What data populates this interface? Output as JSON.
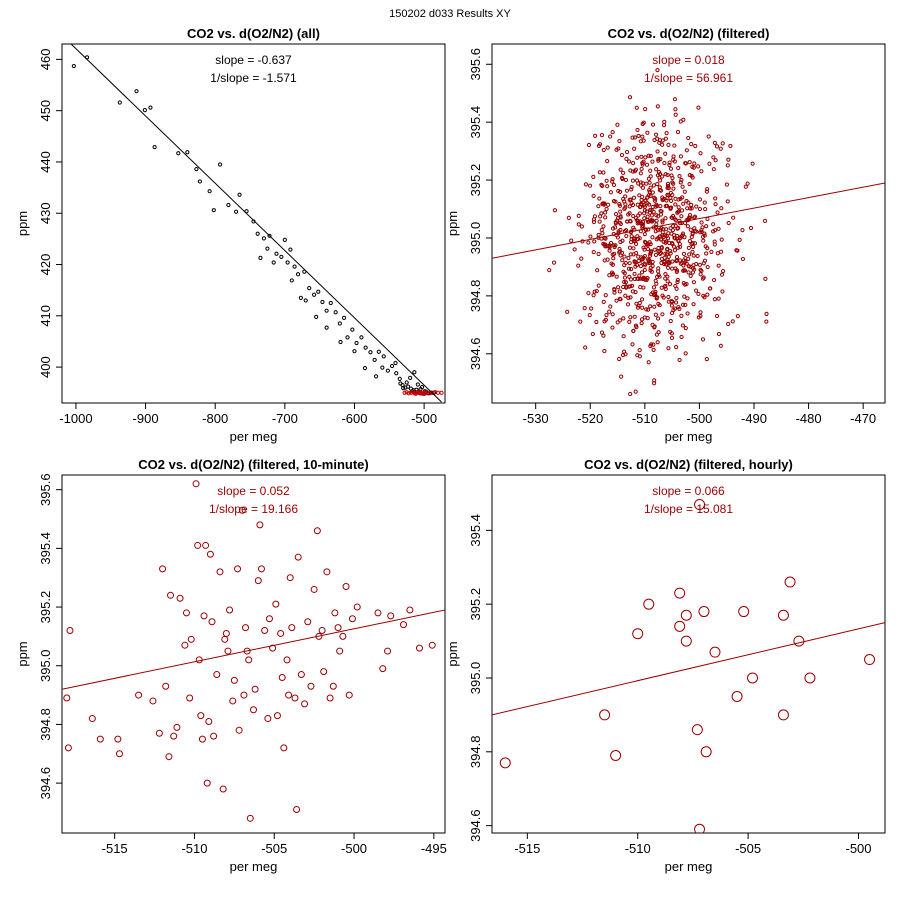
{
  "figure": {
    "title": "150202   d033   Results XY"
  },
  "chart_data": [
    {
      "type": "scatter",
      "id": "all",
      "title": "CO2 vs. d(O2/N2) (all)",
      "xlabel": "per meg",
      "ylabel": "ppm",
      "xlim": [
        -1020,
        -470
      ],
      "ylim": [
        393,
        463
      ],
      "xticks": [
        -1000,
        -900,
        -800,
        -700,
        -600,
        -500
      ],
      "yticks": [
        400,
        410,
        420,
        430,
        440,
        450,
        460
      ],
      "annotations": [
        "slope = -0.637",
        "1/slope = -1.571"
      ],
      "color": "#000000",
      "highlight_color": "#cc0000",
      "fit_line": {
        "x": [
          -1010,
          -475
        ],
        "y": [
          463.4,
          393.2
        ]
      },
      "points_main": [
        [
          -1003,
          458.7
        ],
        [
          -984,
          460.4
        ],
        [
          -937,
          451.6
        ],
        [
          -913,
          453.8
        ],
        [
          -901,
          450.1
        ],
        [
          -893,
          450.6
        ],
        [
          -887,
          442.9
        ],
        [
          -853,
          441.7
        ],
        [
          -840,
          441.9
        ],
        [
          -827,
          438.6
        ],
        [
          -822,
          436.2
        ],
        [
          -808,
          434.3
        ],
        [
          -802,
          430.6
        ],
        [
          -793,
          439.5
        ],
        [
          -781,
          431.6
        ],
        [
          -770,
          430.3
        ],
        [
          -765,
          433.6
        ],
        [
          -755,
          430.4
        ],
        [
          -745,
          428.4
        ],
        [
          -739,
          426.0
        ],
        [
          -730,
          425.1
        ],
        [
          -722,
          425.6
        ],
        [
          -716,
          420.4
        ],
        [
          -712,
          422.1
        ],
        [
          -700,
          424.8
        ],
        [
          -696,
          420.4
        ],
        [
          -692,
          422.9
        ],
        [
          -686,
          419.6
        ],
        [
          -681,
          418.1
        ],
        [
          -677,
          413.5
        ],
        [
          -672,
          418.6
        ],
        [
          -665,
          415.4
        ],
        [
          -658,
          414.1
        ],
        [
          -652,
          414.7
        ],
        [
          -646,
          412.7
        ],
        [
          -640,
          411.0
        ],
        [
          -634,
          412.5
        ],
        [
          -627,
          410.7
        ],
        [
          -621,
          408.5
        ],
        [
          -615,
          409.6
        ],
        [
          -610,
          405.8
        ],
        [
          -603,
          407.3
        ],
        [
          -597,
          404.7
        ],
        [
          -590,
          405.8
        ],
        [
          -584,
          403.8
        ],
        [
          -577,
          402.9
        ],
        [
          -571,
          401.4
        ],
        [
          -565,
          403.0
        ],
        [
          -558,
          402.1
        ],
        [
          -552,
          399.3
        ],
        [
          -546,
          400.2
        ],
        [
          -540,
          398.8
        ],
        [
          -535,
          397.7
        ],
        [
          -531,
          396.5
        ],
        [
          -527,
          396.0
        ],
        [
          -523,
          396.2
        ],
        [
          -519,
          395.8
        ],
        [
          -515,
          395.5
        ],
        [
          -511,
          395.6
        ],
        [
          -508,
          395.2
        ],
        [
          -505,
          395.7
        ],
        [
          -500,
          394.8
        ],
        [
          -497,
          395.2
        ],
        [
          -494,
          394.9
        ],
        [
          -490,
          395.0
        ],
        [
          -486,
          395.0
        ],
        [
          -520,
          397.9
        ],
        [
          -514,
          399.0
        ],
        [
          -525,
          397.0
        ],
        [
          -509,
          396.6
        ],
        [
          -503,
          396.1
        ],
        [
          -517,
          395.3
        ],
        [
          -512,
          395.1
        ],
        [
          -506,
          394.9
        ],
        [
          -499,
          395.3
        ],
        [
          -530,
          395.9
        ],
        [
          -534,
          396.8
        ],
        [
          -541,
          400.8
        ],
        [
          -560,
          399.9
        ],
        [
          -569,
          398.2
        ],
        [
          -585,
          399.8
        ],
        [
          -600,
          403.1
        ],
        [
          -620,
          404.9
        ],
        [
          -640,
          407.7
        ],
        [
          -655,
          409.8
        ],
        [
          -670,
          413.0
        ],
        [
          -690,
          416.9
        ],
        [
          -705,
          421.5
        ],
        [
          -725,
          423.1
        ],
        [
          -735,
          421.3
        ]
      ],
      "points_highlight": [
        [
          -528,
          395.0
        ],
        [
          -522,
          394.9
        ],
        [
          -516,
          395.2
        ],
        [
          -512,
          394.8
        ],
        [
          -508,
          395.1
        ],
        [
          -504,
          394.9
        ],
        [
          -500,
          395.0
        ],
        [
          -496,
          395.1
        ],
        [
          -492,
          394.9
        ],
        [
          -488,
          395.0
        ],
        [
          -484,
          395.1
        ],
        [
          -480,
          395.0
        ],
        [
          -475,
          395.0
        ],
        [
          -519,
          395.0
        ],
        [
          -510,
          395.0
        ],
        [
          -506,
          395.2
        ],
        [
          -502,
          394.8
        ],
        [
          -498,
          394.9
        ],
        [
          -514,
          394.9
        ],
        [
          -525,
          395.1
        ]
      ]
    },
    {
      "type": "scatter",
      "id": "filtered",
      "title": "CO2 vs. d(O2/N2) (filtered)",
      "xlabel": "per meg",
      "ylabel": "ppm",
      "xlim": [
        -538,
        -466
      ],
      "ylim": [
        394.43,
        395.67
      ],
      "xticks": [
        -530,
        -520,
        -510,
        -500,
        -490,
        -480,
        -470
      ],
      "yticks": [
        394.6,
        394.8,
        395.0,
        395.2,
        395.4,
        395.6
      ],
      "annotations": [
        "slope = 0.018",
        "1/slope = 56.961"
      ],
      "color": "#990000",
      "fit_line": {
        "x": [
          -538,
          -466
        ],
        "y": [
          394.93,
          395.19
        ]
      },
      "cloud": {
        "count": 900,
        "x_center": -508,
        "x_spread": 6.5,
        "y_center": 395.0,
        "y_spread": 0.19,
        "seed": 7
      }
    },
    {
      "type": "scatter",
      "id": "ten_minute",
      "title": "CO2 vs. d(O2/N2) (filtered, 10-minute)",
      "xlabel": "per meg",
      "ylabel": "ppm",
      "xlim": [
        -518.3,
        -494.3
      ],
      "ylim": [
        394.43,
        395.65
      ],
      "xticks": [
        -515,
        -510,
        -505,
        -500,
        -495
      ],
      "yticks": [
        394.6,
        394.8,
        395.0,
        395.2,
        395.4,
        395.6
      ],
      "annotations": [
        "slope = 0.052",
        "1/slope = 19.166"
      ],
      "color": "#990000",
      "fit_line": {
        "x": [
          -518.3,
          -494.3
        ],
        "y": [
          394.92,
          395.19
        ]
      },
      "points": [
        [
          -518.0,
          394.89
        ],
        [
          -517.9,
          394.72
        ],
        [
          -517.8,
          395.12
        ],
        [
          -516.4,
          394.82
        ],
        [
          -515.9,
          394.75
        ],
        [
          -514.8,
          394.75
        ],
        [
          -514.7,
          394.7
        ],
        [
          -513.5,
          394.9
        ],
        [
          -512.6,
          394.88
        ],
        [
          -512.2,
          394.77
        ],
        [
          -512.0,
          395.33
        ],
        [
          -511.8,
          394.93
        ],
        [
          -511.6,
          394.69
        ],
        [
          -511.5,
          395.24
        ],
        [
          -511.3,
          394.76
        ],
        [
          -511.1,
          394.79
        ],
        [
          -510.9,
          395.23
        ],
        [
          -510.6,
          395.07
        ],
        [
          -510.5,
          395.18
        ],
        [
          -510.3,
          394.89
        ],
        [
          -510.2,
          395.09
        ],
        [
          -509.9,
          395.62
        ],
        [
          -509.8,
          395.41
        ],
        [
          -509.7,
          395.02
        ],
        [
          -509.6,
          394.83
        ],
        [
          -509.5,
          394.75
        ],
        [
          -509.4,
          395.17
        ],
        [
          -509.3,
          395.41
        ],
        [
          -509.2,
          394.6
        ],
        [
          -509.1,
          394.81
        ],
        [
          -509.0,
          395.38
        ],
        [
          -508.9,
          395.15
        ],
        [
          -508.8,
          394.76
        ],
        [
          -508.6,
          394.97
        ],
        [
          -508.4,
          395.32
        ],
        [
          -508.2,
          394.58
        ],
        [
          -508.1,
          395.09
        ],
        [
          -508.0,
          395.11
        ],
        [
          -507.9,
          395.05
        ],
        [
          -507.8,
          395.19
        ],
        [
          -507.6,
          394.88
        ],
        [
          -507.5,
          394.95
        ],
        [
          -507.3,
          395.33
        ],
        [
          -507.2,
          394.78
        ],
        [
          -507.0,
          395.53
        ],
        [
          -506.9,
          394.9
        ],
        [
          -506.8,
          395.13
        ],
        [
          -506.7,
          395.05
        ],
        [
          -506.6,
          395.02
        ],
        [
          -506.5,
          394.48
        ],
        [
          -506.3,
          394.85
        ],
        [
          -506.2,
          394.92
        ],
        [
          -506.0,
          395.29
        ],
        [
          -505.9,
          395.48
        ],
        [
          -505.8,
          395.33
        ],
        [
          -505.6,
          395.12
        ],
        [
          -505.4,
          394.82
        ],
        [
          -505.3,
          395.16
        ],
        [
          -505.1,
          395.06
        ],
        [
          -504.9,
          395.21
        ],
        [
          -504.8,
          394.83
        ],
        [
          -504.6,
          395.11
        ],
        [
          -504.5,
          394.96
        ],
        [
          -504.4,
          394.72
        ],
        [
          -504.2,
          395.02
        ],
        [
          -504.1,
          394.9
        ],
        [
          -504.0,
          395.3
        ],
        [
          -503.9,
          395.13
        ],
        [
          -503.7,
          394.89
        ],
        [
          -503.6,
          394.51
        ],
        [
          -503.5,
          395.37
        ],
        [
          -503.3,
          394.97
        ],
        [
          -503.1,
          394.87
        ],
        [
          -502.9,
          395.15
        ],
        [
          -502.7,
          394.93
        ],
        [
          -502.5,
          395.26
        ],
        [
          -502.3,
          395.46
        ],
        [
          -502.2,
          395.1
        ],
        [
          -502.0,
          395.12
        ],
        [
          -501.9,
          394.98
        ],
        [
          -501.7,
          395.32
        ],
        [
          -501.5,
          394.89
        ],
        [
          -501.3,
          394.93
        ],
        [
          -501.2,
          395.18
        ],
        [
          -501.0,
          395.13
        ],
        [
          -500.9,
          395.05
        ],
        [
          -500.7,
          395.1
        ],
        [
          -500.5,
          395.27
        ],
        [
          -500.3,
          394.9
        ],
        [
          -500.1,
          395.16
        ],
        [
          -499.8,
          395.2
        ],
        [
          -498.5,
          395.18
        ],
        [
          -498.2,
          394.99
        ],
        [
          -497.9,
          395.05
        ],
        [
          -497.7,
          395.17
        ],
        [
          -496.9,
          395.14
        ],
        [
          -496.5,
          395.19
        ],
        [
          -495.9,
          395.06
        ],
        [
          -495.1,
          395.07
        ]
      ]
    },
    {
      "type": "scatter",
      "id": "hourly",
      "title": "CO2 vs. d(O2/N2) (filtered, hourly)",
      "xlabel": "per meg",
      "ylabel": "ppm",
      "xlim": [
        -516.6,
        -498.8
      ],
      "ylim": [
        394.58,
        395.55
      ],
      "xticks": [
        -515,
        -510,
        -505,
        -500
      ],
      "yticks": [
        394.6,
        394.8,
        395.0,
        395.2,
        395.4
      ],
      "annotations": [
        "slope = 0.066",
        "1/slope = 15.081"
      ],
      "color": "#990000",
      "fit_line": {
        "x": [
          -516.6,
          -498.8
        ],
        "y": [
          394.9,
          395.15
        ]
      },
      "points": [
        [
          -516.0,
          394.77
        ],
        [
          -511.5,
          394.9
        ],
        [
          -511.0,
          394.79
        ],
        [
          -510.0,
          395.12
        ],
        [
          -509.5,
          395.2
        ],
        [
          -508.1,
          395.23
        ],
        [
          -508.1,
          395.14
        ],
        [
          -507.8,
          395.17
        ],
        [
          -507.8,
          395.1
        ],
        [
          -507.3,
          394.86
        ],
        [
          -507.2,
          395.47
        ],
        [
          -507.0,
          395.18
        ],
        [
          -507.2,
          394.59
        ],
        [
          -506.9,
          394.8
        ],
        [
          -506.5,
          395.07
        ],
        [
          -505.5,
          394.95
        ],
        [
          -505.2,
          395.18
        ],
        [
          -504.8,
          395.0
        ],
        [
          -503.4,
          394.9
        ],
        [
          -503.4,
          395.17
        ],
        [
          -503.1,
          395.26
        ],
        [
          -502.7,
          395.1
        ],
        [
          -502.2,
          395.0
        ],
        [
          -499.5,
          395.05
        ]
      ]
    }
  ]
}
